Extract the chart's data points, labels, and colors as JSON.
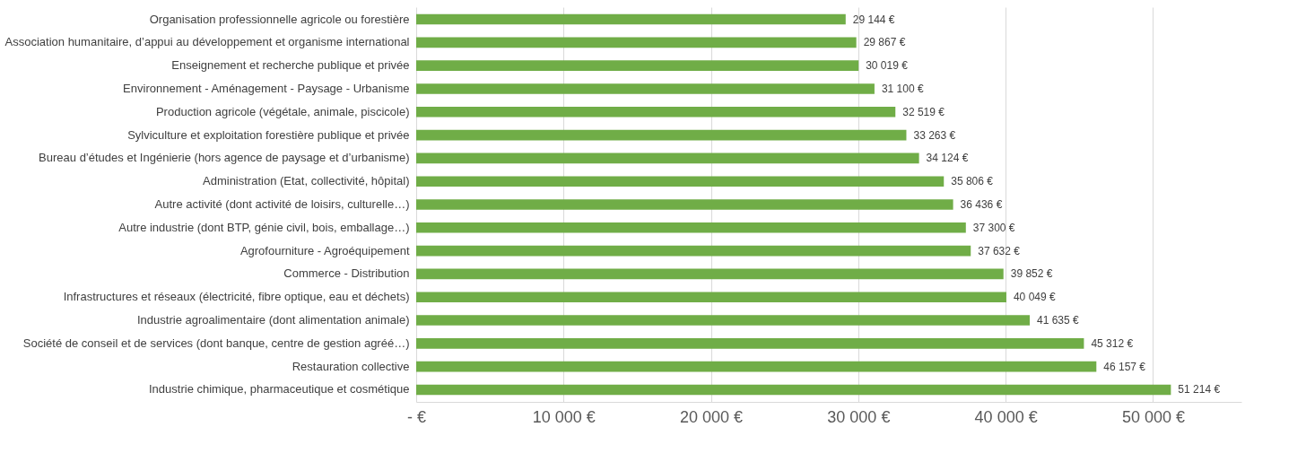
{
  "chart_data": {
    "type": "bar",
    "orientation": "horizontal",
    "categories": [
      "Organisation professionnelle agricole ou forestière",
      "Association humanitaire, d’appui au développement et organisme international",
      "Enseignement et recherche publique et privée",
      "Environnement - Aménagement - Paysage - Urbanisme",
      "Production agricole (végétale, animale, piscicole)",
      "Sylviculture et exploitation forestière publique et privée",
      "Bureau d’études et Ingénierie (hors agence de paysage et d’urbanisme)",
      "Administration (Etat, collectivité, hôpital)",
      "Autre activité (dont activité de loisirs, culturelle…)",
      "Autre industrie (dont BTP, génie civil, bois, emballage…)",
      "Agrofourniture - Agroéquipement",
      "Commerce - Distribution",
      "Infrastructures et réseaux (électricité, fibre optique, eau et déchets)",
      "Industrie agroalimentaire (dont alimentation animale)",
      "Société de conseil et de services (dont banque, centre de gestion agréé…)",
      "Restauration collective",
      "Industrie chimique, pharmaceutique et cosmétique"
    ],
    "values": [
      29144,
      29867,
      30019,
      31100,
      32519,
      33263,
      34124,
      35806,
      36436,
      37300,
      37632,
      39852,
      40049,
      41635,
      45312,
      46157,
      51214
    ],
    "value_labels": [
      "29 144 €",
      "29 867 €",
      "30 019 €",
      "31 100 €",
      "32 519 €",
      "33 263 €",
      "34 124 €",
      "35 806 €",
      "36 436 €",
      "37 300 €",
      "37 632 €",
      "39 852 €",
      "40 049 €",
      "41 635 €",
      "45 312 €",
      "46 157 €",
      "51 214 €"
    ],
    "color": "#70ad47",
    "xlim": [
      0,
      56000
    ],
    "xticks": [
      {
        "value": 0,
        "label": "-  €"
      },
      {
        "value": 10000,
        "label": "10 000 €"
      },
      {
        "value": 20000,
        "label": "20 000 €"
      },
      {
        "value": 30000,
        "label": "30 000 €"
      },
      {
        "value": 40000,
        "label": "40 000 €"
      },
      {
        "value": 50000,
        "label": "50 000 €"
      }
    ],
    "grid": "x"
  }
}
